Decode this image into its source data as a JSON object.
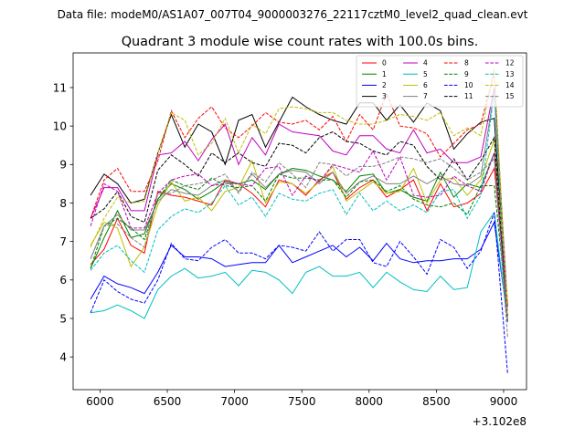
{
  "chart_data": {
    "type": "line",
    "suptitle": "Data file: modeM0/AS1A07_007T04_9000003276_22117cztM0_level2_quad_clean.evt",
    "title": "Quadrant 3 module wise count rates with 100.0s bins.",
    "xlabel": "",
    "ylabel": "",
    "x_offset_label": "+3.102e8",
    "xlim": [
      5800,
      9170
    ],
    "ylim": [
      3.15,
      11.9
    ],
    "xticks": [
      6000,
      6500,
      7000,
      7500,
      8000,
      8500,
      9000
    ],
    "yticks": [
      4,
      5,
      6,
      7,
      8,
      9,
      10,
      11
    ],
    "x": [
      5930,
      6030,
      6130,
      6230,
      6330,
      6430,
      6530,
      6630,
      6730,
      6830,
      6930,
      7030,
      7130,
      7230,
      7330,
      7430,
      7530,
      7630,
      7730,
      7830,
      7930,
      8030,
      8130,
      8230,
      8330,
      8430,
      8530,
      8630,
      8730,
      8830,
      8930,
      9030
    ],
    "legend_position": "upper-right",
    "legend_columns": 4,
    "series": [
      {
        "name": "0",
        "color": "#ff0000",
        "dash": "solid",
        "values": [
          6.4,
          6.8,
          7.6,
          6.9,
          6.7,
          8.3,
          8.2,
          8.15,
          8.05,
          7.95,
          8.6,
          8.5,
          8.25,
          7.9,
          8.6,
          8.5,
          8.2,
          8.6,
          8.8,
          8.1,
          8.4,
          8.6,
          8.15,
          8.35,
          8.6,
          7.8,
          8.5,
          7.9,
          8.0,
          8.25,
          8.9,
          5.4
        ]
      },
      {
        "name": "1",
        "color": "#008000",
        "dash": "solid",
        "values": [
          6.3,
          7.1,
          7.8,
          7.1,
          7.2,
          8.1,
          8.5,
          8.35,
          8.1,
          8.3,
          8.55,
          8.5,
          8.6,
          8.35,
          8.75,
          8.9,
          8.85,
          8.7,
          8.6,
          8.3,
          8.7,
          8.75,
          8.25,
          8.35,
          8.15,
          8.05,
          8.8,
          8.15,
          8.5,
          8.4,
          9.3,
          5.0
        ]
      },
      {
        "name": "2",
        "color": "#0000ff",
        "dash": "solid",
        "values": [
          5.5,
          6.1,
          5.9,
          5.8,
          5.65,
          6.2,
          6.9,
          6.6,
          6.6,
          6.55,
          6.35,
          6.4,
          6.45,
          6.45,
          6.9,
          6.45,
          6.6,
          6.75,
          6.9,
          6.6,
          6.85,
          6.5,
          6.95,
          6.55,
          6.45,
          6.5,
          6.5,
          6.55,
          6.55,
          6.8,
          7.5,
          5.0
        ]
      },
      {
        "name": "3",
        "color": "#000000",
        "dash": "solid",
        "values": [
          8.2,
          8.75,
          8.5,
          8.0,
          8.1,
          9.3,
          10.3,
          9.45,
          10.05,
          9.85,
          9.0,
          10.15,
          10.3,
          9.45,
          10.1,
          10.75,
          10.5,
          10.3,
          10.15,
          10.05,
          10.6,
          10.6,
          10.15,
          10.55,
          10.1,
          10.6,
          10.4,
          9.4,
          9.8,
          10.1,
          10.2,
          5.0
        ]
      },
      {
        "name": "4",
        "color": "#c000c0",
        "dash": "solid",
        "values": [
          7.6,
          8.4,
          8.4,
          7.8,
          7.8,
          9.25,
          9.3,
          9.6,
          9.1,
          9.65,
          10.05,
          9.0,
          9.7,
          9.25,
          10.05,
          9.85,
          9.8,
          9.75,
          9.35,
          9.25,
          9.75,
          9.75,
          9.4,
          9.3,
          9.9,
          9.3,
          9.4,
          9.05,
          9.05,
          9.2,
          11.0,
          5.3
        ]
      },
      {
        "name": "5",
        "color": "#00bfbf",
        "dash": "solid",
        "values": [
          5.15,
          5.2,
          5.35,
          5.2,
          5.0,
          5.75,
          6.1,
          6.3,
          6.05,
          6.1,
          6.2,
          5.85,
          6.25,
          6.2,
          6.0,
          5.65,
          6.2,
          6.35,
          6.1,
          6.1,
          6.2,
          5.8,
          6.2,
          5.95,
          5.75,
          5.7,
          6.1,
          5.75,
          5.8,
          7.25,
          7.75,
          4.9
        ]
      },
      {
        "name": "6",
        "color": "#bfbf00",
        "dash": "solid",
        "values": [
          6.9,
          7.5,
          7.35,
          6.35,
          6.85,
          7.95,
          8.55,
          8.05,
          8.15,
          7.8,
          8.3,
          8.4,
          9.1,
          8.0,
          8.55,
          8.5,
          8.25,
          8.55,
          8.95,
          8.05,
          8.3,
          8.55,
          8.25,
          8.3,
          8.9,
          8.0,
          8.6,
          8.65,
          8.2,
          8.6,
          9.65,
          5.4
        ]
      },
      {
        "name": "7",
        "color": "#808080",
        "dash": "solid",
        "values": [
          6.55,
          7.4,
          7.7,
          7.3,
          7.3,
          8.05,
          8.35,
          8.25,
          8.2,
          8.45,
          8.6,
          8.3,
          8.75,
          8.4,
          8.75,
          8.85,
          8.8,
          8.5,
          8.8,
          8.25,
          8.55,
          8.7,
          8.5,
          8.5,
          8.7,
          8.5,
          8.7,
          8.5,
          8.45,
          8.7,
          10.9,
          5.0
        ]
      },
      {
        "name": "8",
        "color": "#ff0000",
        "dash": "dashed",
        "values": [
          7.6,
          8.6,
          8.9,
          8.3,
          8.3,
          9.1,
          10.4,
          9.7,
          10.2,
          10.5,
          9.95,
          9.7,
          10.0,
          10.35,
          10.1,
          10.05,
          10.15,
          9.9,
          10.25,
          9.6,
          10.3,
          9.9,
          10.85,
          10.0,
          9.95,
          9.8,
          9.2,
          9.55,
          9.9,
          10.05,
          11.4,
          5.0
        ]
      },
      {
        "name": "9",
        "color": "#008000",
        "dash": "dashed",
        "values": [
          6.3,
          7.4,
          7.6,
          7.35,
          7.05,
          8.1,
          8.6,
          8.45,
          8.35,
          8.65,
          8.45,
          8.4,
          8.45,
          8.05,
          8.75,
          8.65,
          8.65,
          8.6,
          8.6,
          8.15,
          8.55,
          8.6,
          8.3,
          8.45,
          8.1,
          7.95,
          7.9,
          8.0,
          7.7,
          8.45,
          8.45,
          5.0
        ]
      },
      {
        "name": "10",
        "color": "#0000ff",
        "dash": "dashed",
        "values": [
          5.15,
          6.0,
          5.7,
          5.5,
          5.4,
          6.0,
          6.95,
          6.55,
          6.5,
          6.85,
          7.05,
          6.7,
          6.7,
          6.55,
          6.9,
          6.85,
          6.75,
          7.25,
          6.75,
          7.05,
          7.05,
          6.45,
          6.35,
          7.0,
          6.6,
          6.15,
          7.05,
          6.85,
          6.3,
          6.75,
          7.75,
          3.55
        ]
      },
      {
        "name": "11",
        "color": "#000000",
        "dash": "dashed",
        "values": [
          7.6,
          7.85,
          8.3,
          7.65,
          7.5,
          8.85,
          9.25,
          9.0,
          8.7,
          9.3,
          9.05,
          9.3,
          9.05,
          8.95,
          9.55,
          9.5,
          9.3,
          9.7,
          9.85,
          9.6,
          9.55,
          9.35,
          9.25,
          9.6,
          9.5,
          8.95,
          8.6,
          9.15,
          8.6,
          9.1,
          9.7,
          4.9
        ]
      },
      {
        "name": "12",
        "color": "#c000c0",
        "dash": "dashed",
        "values": [
          7.4,
          8.5,
          8.3,
          7.35,
          7.35,
          8.25,
          8.6,
          8.7,
          8.75,
          8.45,
          8.5,
          8.5,
          8.45,
          8.9,
          8.95,
          8.2,
          8.7,
          8.55,
          9.0,
          8.9,
          8.8,
          9.35,
          8.6,
          9.2,
          8.2,
          8.15,
          8.2,
          8.7,
          8.45,
          8.3,
          9.3,
          4.9
        ]
      },
      {
        "name": "13",
        "color": "#00bfbf",
        "dash": "dashed",
        "values": [
          6.25,
          6.7,
          6.9,
          6.5,
          6.2,
          7.3,
          7.65,
          7.85,
          7.75,
          8.0,
          8.45,
          7.95,
          8.15,
          7.65,
          8.25,
          8.1,
          8.05,
          8.25,
          8.35,
          7.7,
          8.25,
          7.8,
          8.05,
          7.8,
          7.95,
          7.75,
          8.3,
          8.35,
          7.6,
          8.2,
          10.9,
          4.9
        ]
      },
      {
        "name": "14",
        "color": "#bfbf00",
        "dash": "dashed",
        "values": [
          6.85,
          7.6,
          8.15,
          8.0,
          8.05,
          9.3,
          10.35,
          10.15,
          9.25,
          9.55,
          10.2,
          9.3,
          10.05,
          9.8,
          10.45,
          10.5,
          10.45,
          10.35,
          10.35,
          10.15,
          10.05,
          10.05,
          10.15,
          10.3,
          10.25,
          10.15,
          10.35,
          9.75,
          9.95,
          9.75,
          11.5,
          5.0
        ]
      },
      {
        "name": "15",
        "color": "#808080",
        "dash": "dashed",
        "values": [
          6.55,
          7.4,
          7.45,
          7.1,
          6.85,
          8.25,
          8.25,
          8.45,
          8.5,
          8.6,
          8.75,
          8.25,
          8.8,
          8.55,
          9.05,
          8.75,
          8.4,
          9.05,
          9.0,
          8.7,
          8.95,
          8.95,
          9.05,
          9.2,
          9.15,
          9.05,
          9.15,
          8.9,
          8.6,
          8.8,
          9.15,
          4.5
        ]
      }
    ]
  }
}
